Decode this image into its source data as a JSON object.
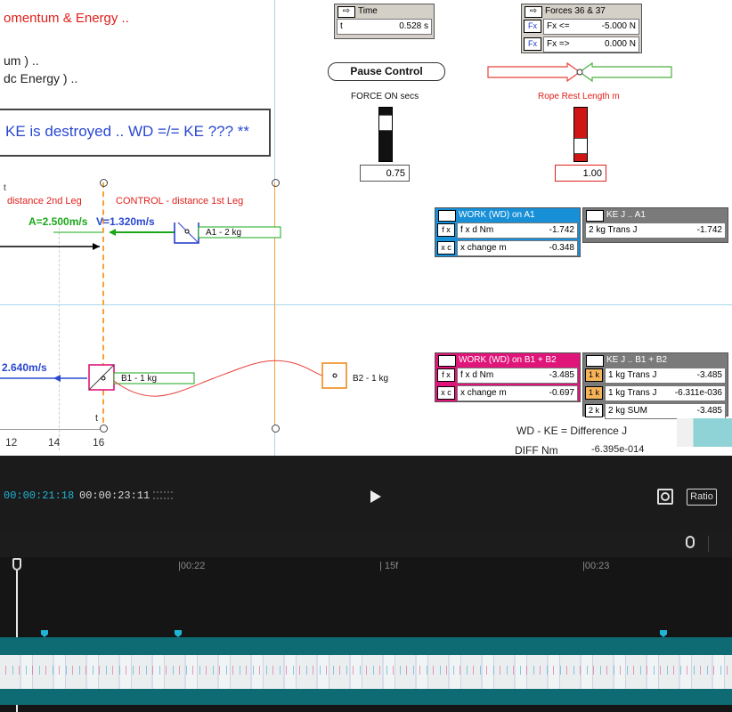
{
  "sim": {
    "title_fragment": "omentum & Energy ..",
    "line2": "um )  ..",
    "line3": "dc Energy )  ..",
    "ke_banner": "KE is destroyed .. WD =/= KE ??? **",
    "time_panel": {
      "title": "Time",
      "label": "t",
      "value": "0.528 s"
    },
    "forces_panel": {
      "title": "Forces 36 & 37",
      "rows": [
        {
          "key": "Fx",
          "label": "Fx <=",
          "value": "-5.000 N"
        },
        {
          "key": "Fx",
          "label": "Fx =>",
          "value": "0.000 N"
        }
      ]
    },
    "pause_button": "Pause Control",
    "force_on_label": "FORCE ON secs",
    "force_on_value": "0.75",
    "rope_label": "Rope Rest Length m",
    "rope_value": "1.00",
    "dist2_label": "distance 2nd Leg",
    "control_label": "CONTROL - distance 1st Leg",
    "accel_label": "A=2.500m/s",
    "velocity_label": "V=1.320m/s",
    "a1_label": "A1 - 2 kg",
    "speed2_label": "2.640m/s",
    "b1_label": "B1 - 1 kg",
    "b2_label": "B2 - 1 kg",
    "axis_ticks": [
      "12",
      "14",
      "16"
    ],
    "axis_t": "t",
    "small_label": "t",
    "work_a1": {
      "title": "WORK (WD) on A1",
      "rows": [
        {
          "key": "f x",
          "label": "f x d Nm",
          "value": "-1.742"
        },
        {
          "key": "x c",
          "label": "x change m",
          "value": "-0.348"
        }
      ]
    },
    "ke_a1": {
      "title": "KE J .. A1",
      "rows": [
        {
          "label": "2 kg Trans J",
          "value": "-1.742"
        }
      ]
    },
    "work_b": {
      "title": "WORK (WD) on B1 + B2",
      "rows": [
        {
          "key": "f x",
          "label": "f x d Nm",
          "value": "-3.485"
        },
        {
          "key": "x c",
          "label": "x change m",
          "value": "-0.697"
        }
      ]
    },
    "ke_b": {
      "title": "KE J .. B1 + B2",
      "rows": [
        {
          "key": "1 k",
          "label": "1 kg Trans J",
          "value": "-3.485"
        },
        {
          "key": "1 k",
          "label": "1 kg Trans J",
          "value": "-6.311e-036"
        },
        {
          "key": "2 k",
          "label": "2 kg SUM",
          "value": "-3.485"
        }
      ]
    },
    "wd_ke_label": "WD  -  KE  =  Difference J",
    "diff_label": "DIFF Nm",
    "diff_value": "-6.395e-014"
  },
  "player": {
    "current_time": "00:00:21:18",
    "total_time": "00:00:23:11",
    "ratio_label": "Ratio"
  },
  "timeline": {
    "marks": [
      "|00:22",
      "| 15f",
      "|00:23"
    ]
  },
  "colors": {
    "accent": "#1fb5d6",
    "blue_panel": "#1890d8",
    "pink_panel": "#e0157a",
    "track": "#0e6a73"
  }
}
